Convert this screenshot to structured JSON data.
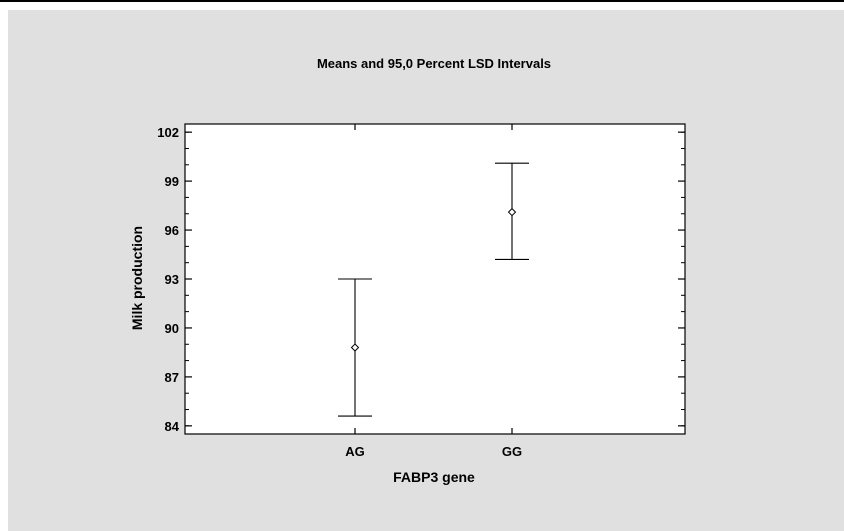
{
  "chart_data": {
    "type": "scatter",
    "title": "Means and 95,0 Percent LSD Intervals",
    "xlabel": "FABP3 gene",
    "ylabel": "Milk production",
    "categories": [
      "AG",
      "GG"
    ],
    "series": [
      {
        "means": [
          88.8,
          97.1
        ],
        "lower": [
          84.6,
          94.2
        ],
        "upper": [
          93.0,
          100.1
        ]
      }
    ],
    "ylim": [
      83.5,
      102.5
    ],
    "yticks": [
      84,
      87,
      90,
      93,
      96,
      99,
      102
    ],
    "grid": false,
    "legend": "none"
  }
}
